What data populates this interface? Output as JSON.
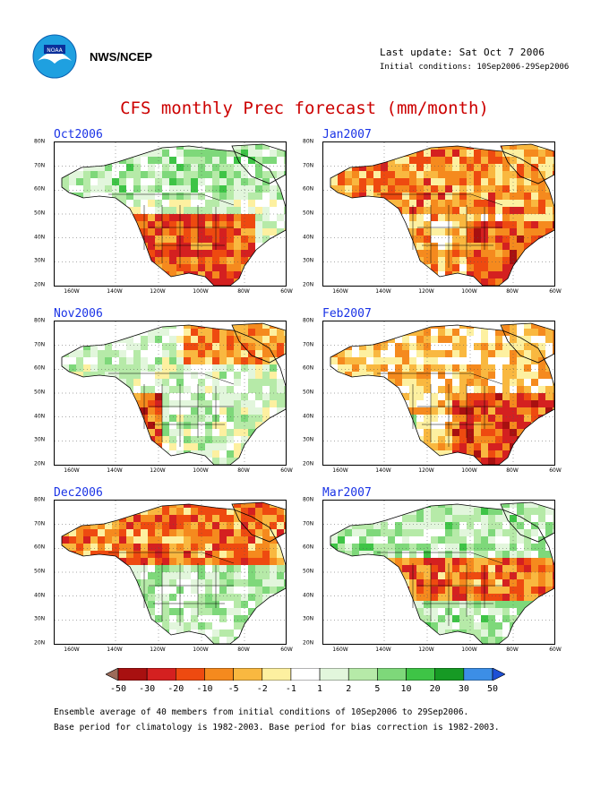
{
  "header": {
    "org_label": "NWS/NCEP",
    "last_update": "Last update: Sat Oct 7 2006",
    "initial_conditions": "Initial conditions: 10Sep2006-29Sep2006",
    "title": "CFS monthly Prec forecast (mm/month)"
  },
  "panels": [
    {
      "title": "Oct2006",
      "bias": "dry_south"
    },
    {
      "title": "Nov2006",
      "bias": "dry_west"
    },
    {
      "title": "Dec2006",
      "bias": "dry_north"
    },
    {
      "title": "Jan2007",
      "bias": "dry_wide"
    },
    {
      "title": "Feb2007",
      "bias": "dry_east"
    },
    {
      "title": "Mar2007",
      "bias": "dry_center"
    }
  ],
  "axes": {
    "lat_labels": [
      "80N",
      "70N",
      "60N",
      "50N",
      "40N",
      "30N",
      "20N"
    ],
    "lon_labels": [
      "160W",
      "140W",
      "120W",
      "100W",
      "80W",
      "60W"
    ]
  },
  "legend": {
    "labels": [
      "-50",
      "-30",
      "-20",
      "-10",
      "-5",
      "-2",
      "-1",
      "1",
      "2",
      "5",
      "10",
      "20",
      "30",
      "50"
    ],
    "colors": [
      "#9c6b5a",
      "#a81010",
      "#d42020",
      "#ee4a10",
      "#f58a1e",
      "#f9b840",
      "#fdf0a0",
      "#ffffff",
      "#e2f6dc",
      "#b6eaa8",
      "#7ed87a",
      "#3ec446",
      "#169a24",
      "#3c8ee6",
      "#1d50d6"
    ]
  },
  "footer": {
    "line1": "Ensemble average of 40 members from initial conditions of 10Sep2006 to 29Sep2006.",
    "line2": "Base period for climatology is 1982-2003. Base period for bias correction is 1982-2003."
  }
}
